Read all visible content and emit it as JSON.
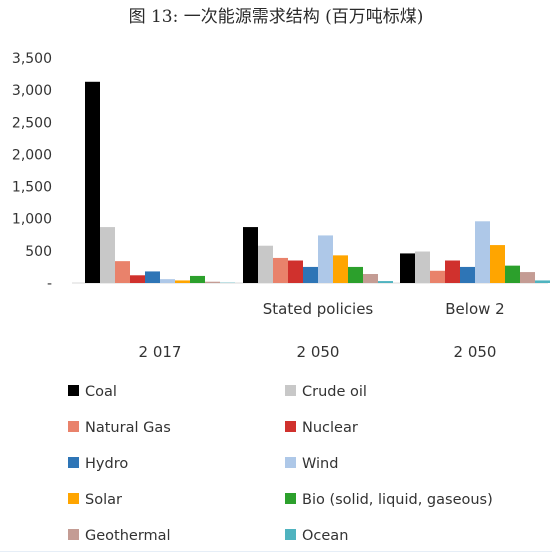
{
  "chart_data": {
    "type": "bar",
    "title": "图 13: 一次能源需求结构 (百万吨标煤)",
    "ylim": [
      0,
      3500
    ],
    "y_ticks": [
      "-",
      "500",
      "1,000",
      "1,500",
      "2,000",
      "2,500",
      "3,000",
      "3,500"
    ],
    "categories": [
      "",
      "Stated policies",
      "Below 2"
    ],
    "years": [
      "2 017",
      "2 050",
      "2 050"
    ],
    "grid": false,
    "legend_position": "bottom",
    "series": [
      {
        "name": "Coal",
        "color": "#000000",
        "values": [
          3130,
          870,
          460
        ]
      },
      {
        "name": "Crude oil",
        "color": "#c8c8c8",
        "values": [
          870,
          580,
          490
        ]
      },
      {
        "name": "Natural Gas",
        "color": "#e9826b",
        "values": [
          340,
          390,
          190
        ]
      },
      {
        "name": "Nuclear",
        "color": "#d0312d",
        "values": [
          120,
          350,
          350
        ]
      },
      {
        "name": "Hydro",
        "color": "#2e75b6",
        "values": [
          180,
          250,
          250
        ]
      },
      {
        "name": "Wind",
        "color": "#aec8e8",
        "values": [
          60,
          740,
          960
        ]
      },
      {
        "name": "Solar",
        "color": "#ffa500",
        "values": [
          40,
          430,
          590
        ]
      },
      {
        "name": "Bio (solid, liquid, gaseous)",
        "color": "#2ca02c",
        "values": [
          110,
          250,
          270
        ]
      },
      {
        "name": "Geothermal",
        "color": "#c49c94",
        "values": [
          20,
          140,
          170
        ]
      },
      {
        "name": "Ocean",
        "color": "#4fb3bf",
        "values": [
          5,
          30,
          40
        ]
      }
    ]
  }
}
